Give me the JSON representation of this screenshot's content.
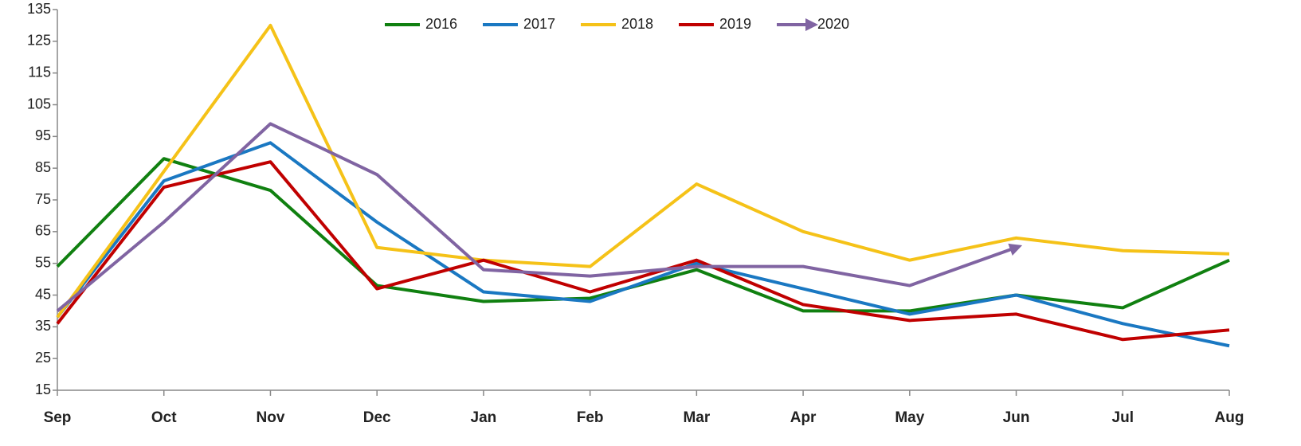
{
  "chart_data": {
    "type": "line",
    "categories": [
      "Sep",
      "Oct",
      "Nov",
      "Dec",
      "Jan",
      "Feb",
      "Mar",
      "Apr",
      "May",
      "Jun",
      "Jul",
      "Aug"
    ],
    "series": [
      {
        "name": "2016",
        "color": "#108010",
        "values": [
          54,
          88,
          78,
          48,
          43,
          44,
          53,
          40,
          40,
          45,
          41,
          56
        ]
      },
      {
        "name": "2017",
        "color": "#1a78c2",
        "values": [
          38,
          81,
          93,
          68,
          46,
          43,
          55,
          47,
          39,
          45,
          36,
          29
        ]
      },
      {
        "name": "2018",
        "color": "#f5c218",
        "values": [
          38,
          84,
          130,
          60,
          56,
          54,
          80,
          65,
          56,
          63,
          59,
          58
        ]
      },
      {
        "name": "2019",
        "color": "#c00000",
        "values": [
          36,
          79,
          87,
          47,
          56,
          46,
          56,
          42,
          37,
          39,
          31,
          34
        ]
      },
      {
        "name": "2020",
        "color": "#8064a2",
        "marker_end": "arrow",
        "values": [
          40,
          68,
          99,
          83,
          53,
          51,
          54,
          54,
          48,
          60,
          null,
          null
        ]
      }
    ],
    "ylim": [
      15,
      135
    ],
    "yticks": [
      15,
      25,
      35,
      45,
      55,
      65,
      75,
      85,
      95,
      105,
      115,
      125,
      135
    ],
    "grid": false,
    "legend": "top"
  }
}
